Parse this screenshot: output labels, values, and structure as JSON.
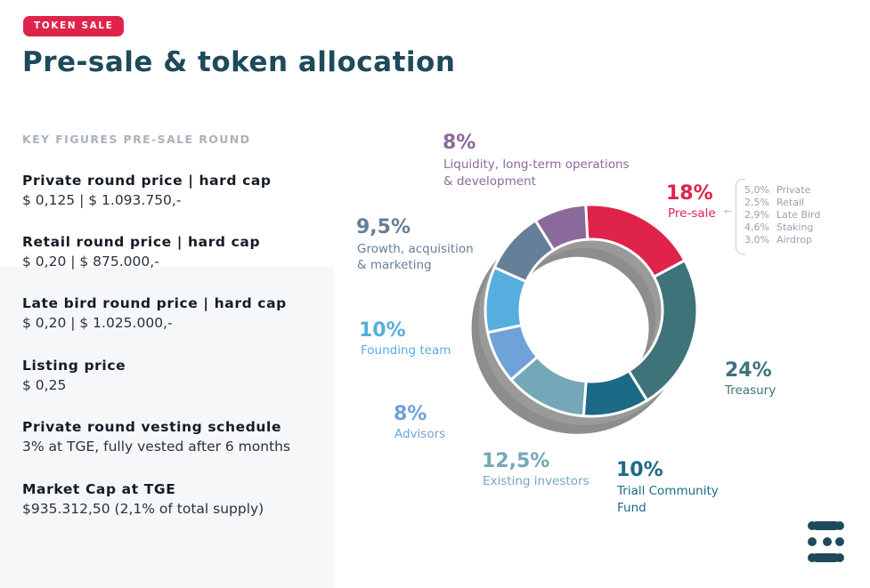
{
  "badge": "TOKEN SALE",
  "title": "Pre-sale & token allocation",
  "key_figures": {
    "heading": "KEY FIGURES PRE-SALE ROUND",
    "items": [
      {
        "label": "Private round price | hard cap",
        "value": "$ 0,125 | $ 1.093.750,-"
      },
      {
        "label": "Retail round price | hard cap",
        "value": "$ 0,20 | $ 875.000,-"
      },
      {
        "label": "Late bird round price | hard cap",
        "value": "$ 0,20 | $ 1.025.000,-"
      },
      {
        "label": "Listing price",
        "value": "$ 0,25"
      },
      {
        "label": "Private round vesting schedule",
        "value": "3% at TGE, fully vested after 6 months"
      },
      {
        "label": "Market Cap at TGE",
        "value": "$935.312,50 (2,1% of total supply)"
      }
    ]
  },
  "chart_data": {
    "type": "pie",
    "donut": true,
    "slices": [
      {
        "pct_label": "18%",
        "value": 18,
        "label": "Pre-sale",
        "color": "#e0234b"
      },
      {
        "pct_label": "24%",
        "value": 24,
        "label": "Treasury",
        "color": "#3e7379"
      },
      {
        "pct_label": "10%",
        "value": 10,
        "label": "Triall Community Fund",
        "label_lines": [
          "Triall Community",
          "Fund"
        ],
        "color": "#1b6a86"
      },
      {
        "pct_label": "12,5%",
        "value": 12.5,
        "label": "Existing investors",
        "color": "#74a8b8"
      },
      {
        "pct_label": "8%",
        "value": 8,
        "label": "Advisors",
        "color": "#6fa2d8"
      },
      {
        "pct_label": "10%",
        "value": 10,
        "label": "Founding team",
        "color": "#56aedf"
      },
      {
        "pct_label": "9,5%",
        "value": 9.5,
        "label": "Growth, acquisition & marketing",
        "label_lines": [
          "Growth, acquisition",
          "& marketing"
        ],
        "color": "#667f98"
      },
      {
        "pct_label": "8%",
        "value": 8,
        "label": "Liquidity, long-term operations & development",
        "label_lines": [
          "Liquidity, long-term operations",
          "& development"
        ],
        "color": "#8a6a9a"
      }
    ],
    "presale_breakdown": [
      {
        "value": "5,0%",
        "label": "Private"
      },
      {
        "value": "2,5%",
        "label": "Retail"
      },
      {
        "value": "2,9%",
        "label": "Late Bird"
      },
      {
        "value": "4,6%",
        "label": "Staking"
      },
      {
        "value": "3,0%",
        "label": "Airdrop"
      }
    ]
  }
}
